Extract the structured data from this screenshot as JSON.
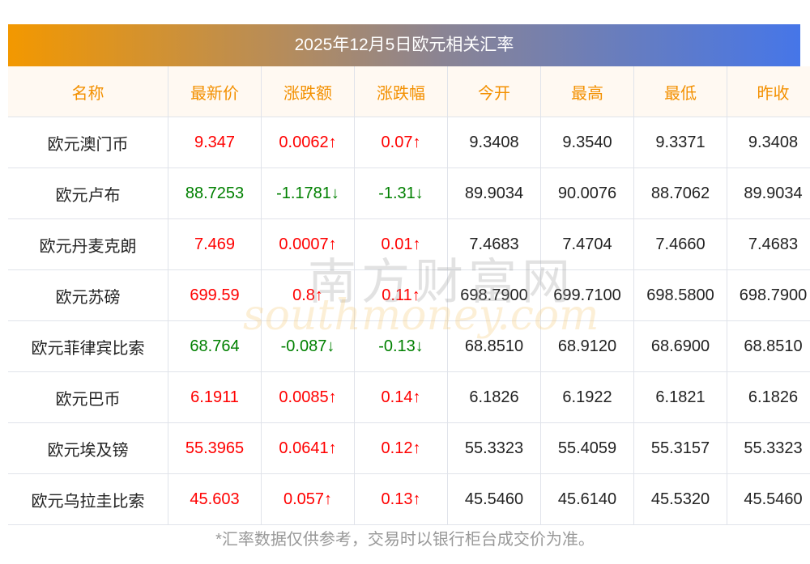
{
  "title": "2025年12月5日欧元相关汇率",
  "headers": [
    "名称",
    "最新价",
    "涨跌额",
    "涨跌幅",
    "今开",
    "最高",
    "最低",
    "昨收"
  ],
  "rows": [
    {
      "name": "欧元澳门币",
      "price": "9.347",
      "change": "0.0062↑",
      "pct": "0.07↑",
      "open": "9.3408",
      "high": "9.3540",
      "low": "9.3371",
      "prev": "9.3408",
      "dir": "up"
    },
    {
      "name": "欧元卢布",
      "price": "88.7253",
      "change": "-1.1781↓",
      "pct": "-1.31↓",
      "open": "89.9034",
      "high": "90.0076",
      "low": "88.7062",
      "prev": "89.9034",
      "dir": "down"
    },
    {
      "name": "欧元丹麦克朗",
      "price": "7.469",
      "change": "0.0007↑",
      "pct": "0.01↑",
      "open": "7.4683",
      "high": "7.4704",
      "low": "7.4660",
      "prev": "7.4683",
      "dir": "up"
    },
    {
      "name": "欧元苏磅",
      "price": "699.59",
      "change": "0.8↑",
      "pct": "0.11↑",
      "open": "698.7900",
      "high": "699.7100",
      "low": "698.5800",
      "prev": "698.7900",
      "dir": "up"
    },
    {
      "name": "欧元菲律宾比索",
      "price": "68.764",
      "change": "-0.087↓",
      "pct": "-0.13↓",
      "open": "68.8510",
      "high": "68.9120",
      "low": "68.6900",
      "prev": "68.8510",
      "dir": "down"
    },
    {
      "name": "欧元巴币",
      "price": "6.1911",
      "change": "0.0085↑",
      "pct": "0.14↑",
      "open": "6.1826",
      "high": "6.1922",
      "low": "6.1821",
      "prev": "6.1826",
      "dir": "up"
    },
    {
      "name": "欧元埃及镑",
      "price": "55.3965",
      "change": "0.0641↑",
      "pct": "0.12↑",
      "open": "55.3323",
      "high": "55.4059",
      "low": "55.3157",
      "prev": "55.3323",
      "dir": "up"
    },
    {
      "name": "欧元乌拉圭比索",
      "price": "45.603",
      "change": "0.057↑",
      "pct": "0.13↑",
      "open": "45.5460",
      "high": "45.6140",
      "low": "45.5320",
      "prev": "45.5460",
      "dir": "up"
    }
  ],
  "watermark": {
    "cn": "南方财富网",
    "en": "southmoney.com"
  },
  "footer": "*汇率数据仅供参考，交易时以银行柜台成交价为准。"
}
